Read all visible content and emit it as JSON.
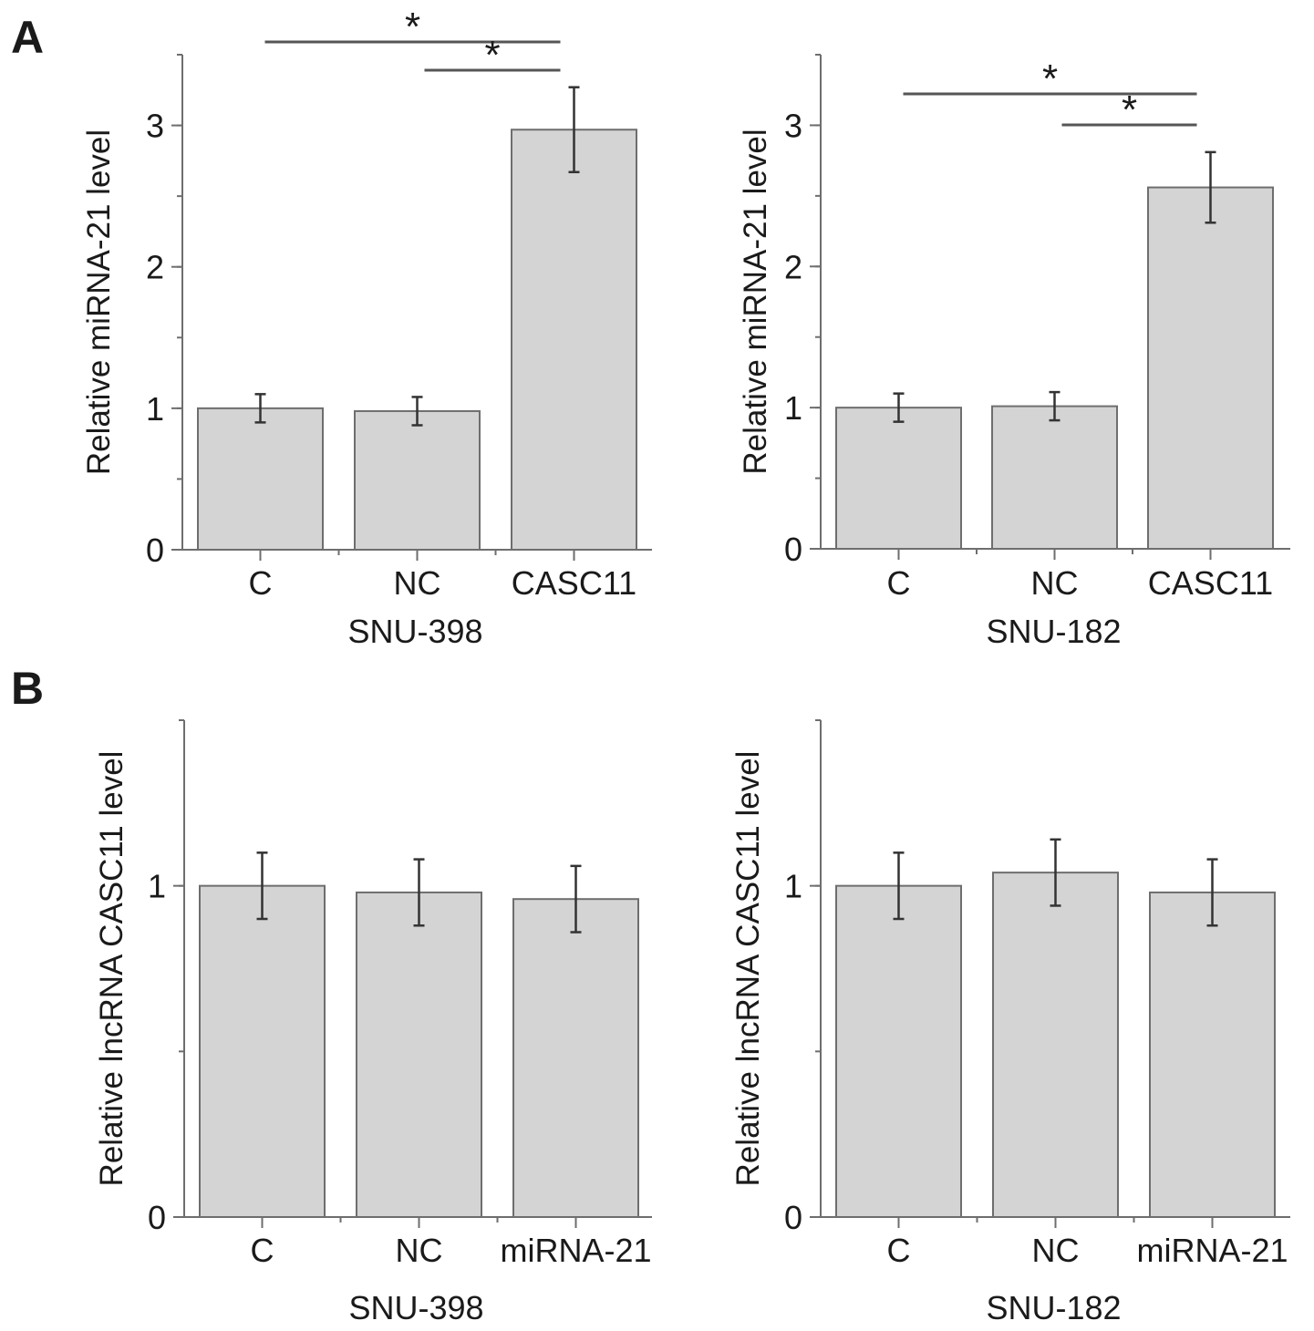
{
  "panel_labels": [
    "A",
    "B"
  ],
  "colors": {
    "bar_fill": "#d4d4d4",
    "bar_stroke": "#6e6e6e",
    "axis": "#6e6e6e",
    "error": "#333333",
    "sig": "#555555"
  },
  "chart_data": [
    {
      "type": "bar",
      "panel": "A",
      "title": "",
      "xlabel": "SNU-398",
      "ylabel": "Relative miRNA-21 level",
      "ylim": [
        0,
        3.5
      ],
      "yticks": [
        0,
        1,
        2,
        3
      ],
      "minor_step": 0.5,
      "categories": [
        "C",
        "NC",
        "CASC11"
      ],
      "values": [
        1.0,
        0.98,
        2.97
      ],
      "errors": [
        0.1,
        0.1,
        0.3
      ],
      "significance": [
        {
          "from": 0,
          "to": 2,
          "label": "*"
        },
        {
          "from": 1,
          "to": 2,
          "label": "*"
        }
      ]
    },
    {
      "type": "bar",
      "panel": "A",
      "title": "",
      "xlabel": "SNU-182",
      "ylabel": "Relative miRNA-21 level",
      "ylim": [
        0,
        3.5
      ],
      "yticks": [
        0,
        1,
        2,
        3
      ],
      "minor_step": 0.5,
      "categories": [
        "C",
        "NC",
        "CASC11"
      ],
      "values": [
        1.0,
        1.01,
        2.56
      ],
      "errors": [
        0.1,
        0.1,
        0.25
      ],
      "significance": [
        {
          "from": 0,
          "to": 2,
          "label": "*"
        },
        {
          "from": 1,
          "to": 2,
          "label": "*"
        }
      ]
    },
    {
      "type": "bar",
      "panel": "B",
      "title": "",
      "xlabel": "SNU-398",
      "ylabel": "Relative lncRNA CASC11 level",
      "ylim": [
        0,
        1.5
      ],
      "yticks": [
        0,
        1
      ],
      "minor_step": 0.5,
      "categories": [
        "C",
        "NC",
        "miRNA-21"
      ],
      "values": [
        1.0,
        0.98,
        0.96
      ],
      "errors": [
        0.1,
        0.1,
        0.1
      ],
      "significance": []
    },
    {
      "type": "bar",
      "panel": "B",
      "title": "",
      "xlabel": "SNU-182",
      "ylabel": "Relative lncRNA CASC11 level",
      "ylim": [
        0,
        1.5
      ],
      "yticks": [
        0,
        1
      ],
      "minor_step": 0.5,
      "categories": [
        "C",
        "NC",
        "miRNA-21"
      ],
      "values": [
        1.0,
        1.04,
        0.98
      ],
      "errors": [
        0.1,
        0.1,
        0.1
      ],
      "significance": []
    }
  ]
}
